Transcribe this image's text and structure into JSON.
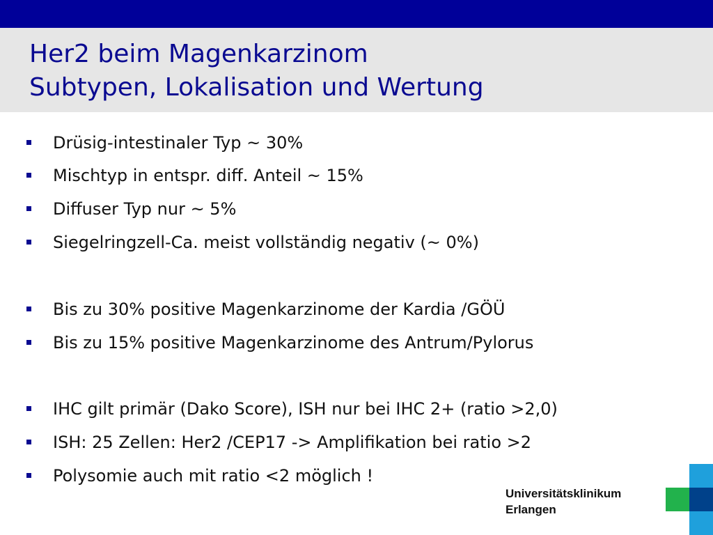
{
  "slide": {
    "title_line1": "Her2 beim Magenkarzinom",
    "title_line2": "Subtypen, Lokalisation und Wertung",
    "bullets": [
      "Drüsig-intestinaler Typ ~ 30%",
      "Mischtyp in entspr. diff. Anteil ~ 15%",
      "Diffuser Typ nur ~ 5%",
      "Siegelringzell-Ca. meist vollständig negativ (~ 0%)",
      "Bis zu 30% positive Magenkarzinome der Kardia /GÖÜ",
      "Bis zu 15% positive Magenkarzinome des Antrum/Pylorus",
      "IHC gilt primär (Dako Score), ISH nur bei IHC 2+ (ratio >2,0)",
      "ISH: 25 Zellen: Her2 /CEP17 -> Amplifikation bei ratio >2",
      "Polysomie auch mit ratio <2 möglich !"
    ]
  },
  "logo": {
    "line1": "Universitätsklinikum",
    "line2": "Erlangen"
  },
  "colors": {
    "header_bar": "#000099",
    "title_band": "#e6e6e6",
    "title_text": "#0a0a91",
    "bullet_marker": "#0a0a91",
    "logo_green": "#22b24c",
    "logo_light_blue": "#1fa0dc",
    "logo_dark_blue": "#00418a"
  }
}
